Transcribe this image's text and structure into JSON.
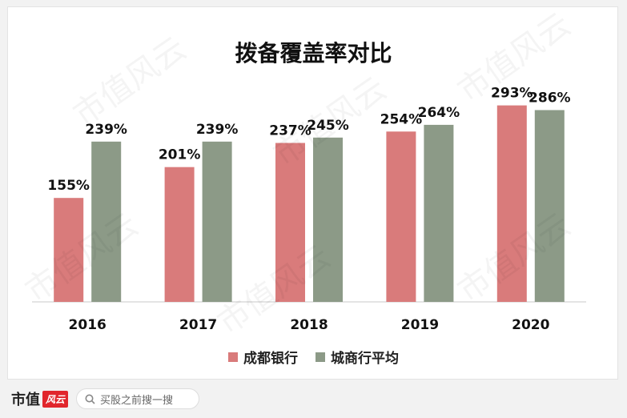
{
  "chart_data": {
    "type": "bar",
    "title": "拨备覆盖率对比",
    "categories": [
      "2016",
      "2017",
      "2018",
      "2019",
      "2020"
    ],
    "series": [
      {
        "name": "成都银行",
        "values": [
          155,
          201,
          237,
          254,
          293
        ],
        "color": "#d97b7b"
      },
      {
        "name": "城商行平均",
        "values": [
          239,
          239,
          245,
          264,
          286
        ],
        "color": "#8c9a87"
      }
    ],
    "value_suffix": "%",
    "ylim": [
      0,
      320
    ],
    "grid": false,
    "legend_position": "bottom"
  },
  "footer": {
    "brand": "市值",
    "brand_mark": "风云",
    "search_placeholder": "买股之前搜一搜",
    "search_icon": "search-icon"
  },
  "watermark": "市值风云"
}
